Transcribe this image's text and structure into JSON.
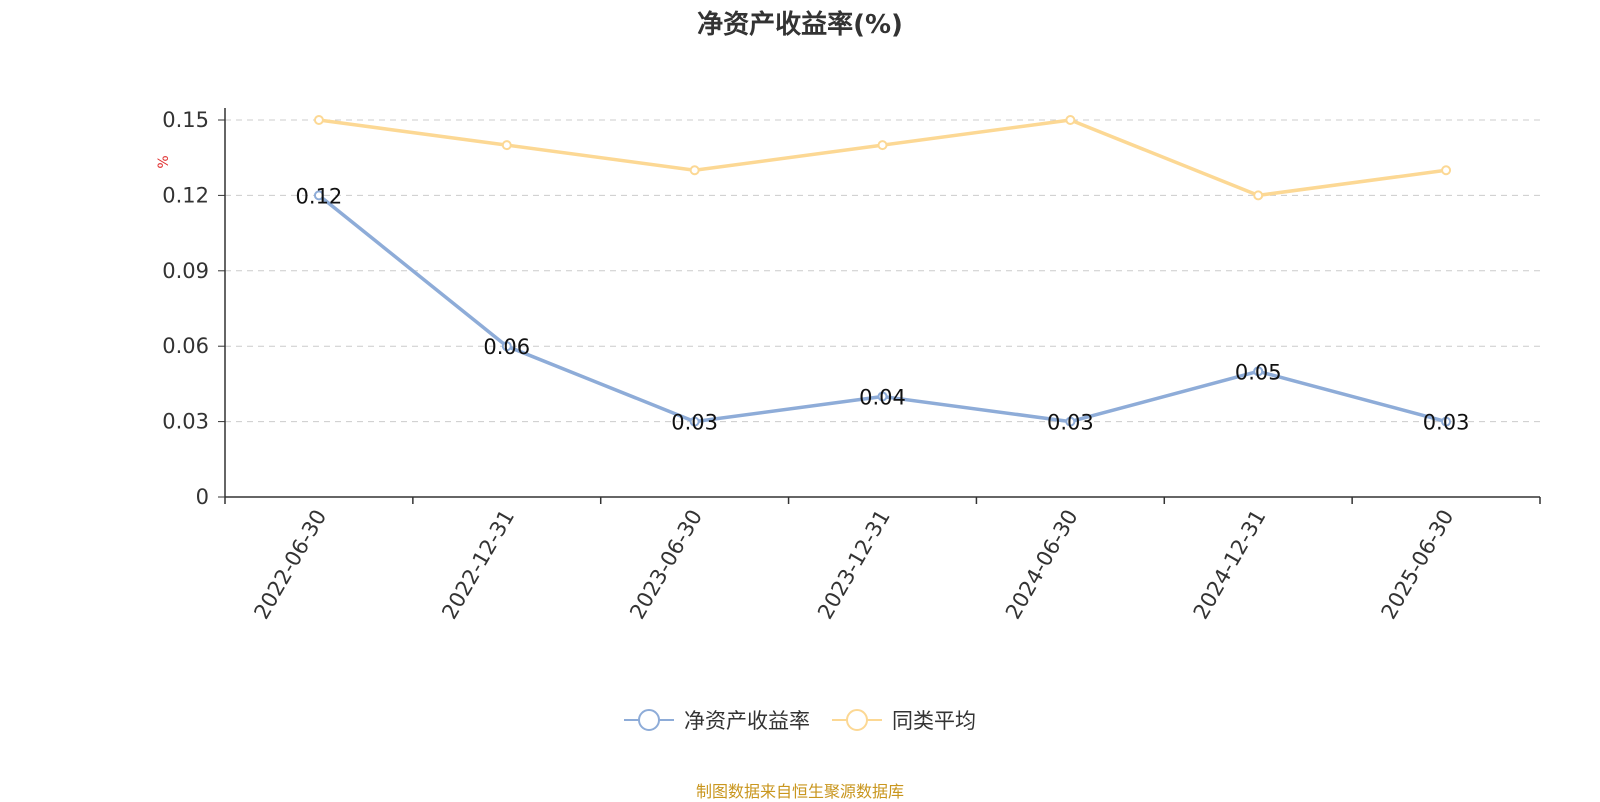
{
  "chart_data": {
    "type": "line",
    "title": "净资产收益率(%)",
    "ylabel": "%",
    "categories": [
      "2022-06-30",
      "2022-12-31",
      "2023-06-30",
      "2023-12-31",
      "2024-06-30",
      "2024-12-31",
      "2025-06-30"
    ],
    "series": [
      {
        "name": "净资产收益率",
        "values": [
          0.12,
          0.06,
          0.03,
          0.04,
          0.03,
          0.05,
          0.03
        ],
        "color": "#8eacd8",
        "labels": [
          "0.12",
          "0.06",
          "0.03",
          "0.04",
          "0.03",
          "0.05",
          "0.03"
        ]
      },
      {
        "name": "同类平均",
        "values": [
          0.15,
          0.14,
          0.13,
          0.14,
          0.15,
          0.12,
          0.13
        ],
        "color": "#fcd894"
      }
    ],
    "ylim": [
      0,
      0.15
    ],
    "yticks": [
      "0",
      "0.03",
      "0.06",
      "0.09",
      "0.12",
      "0.15"
    ],
    "grid": true,
    "legend": "bottom-center"
  },
  "footer": "制图数据来自恒生聚源数据库"
}
